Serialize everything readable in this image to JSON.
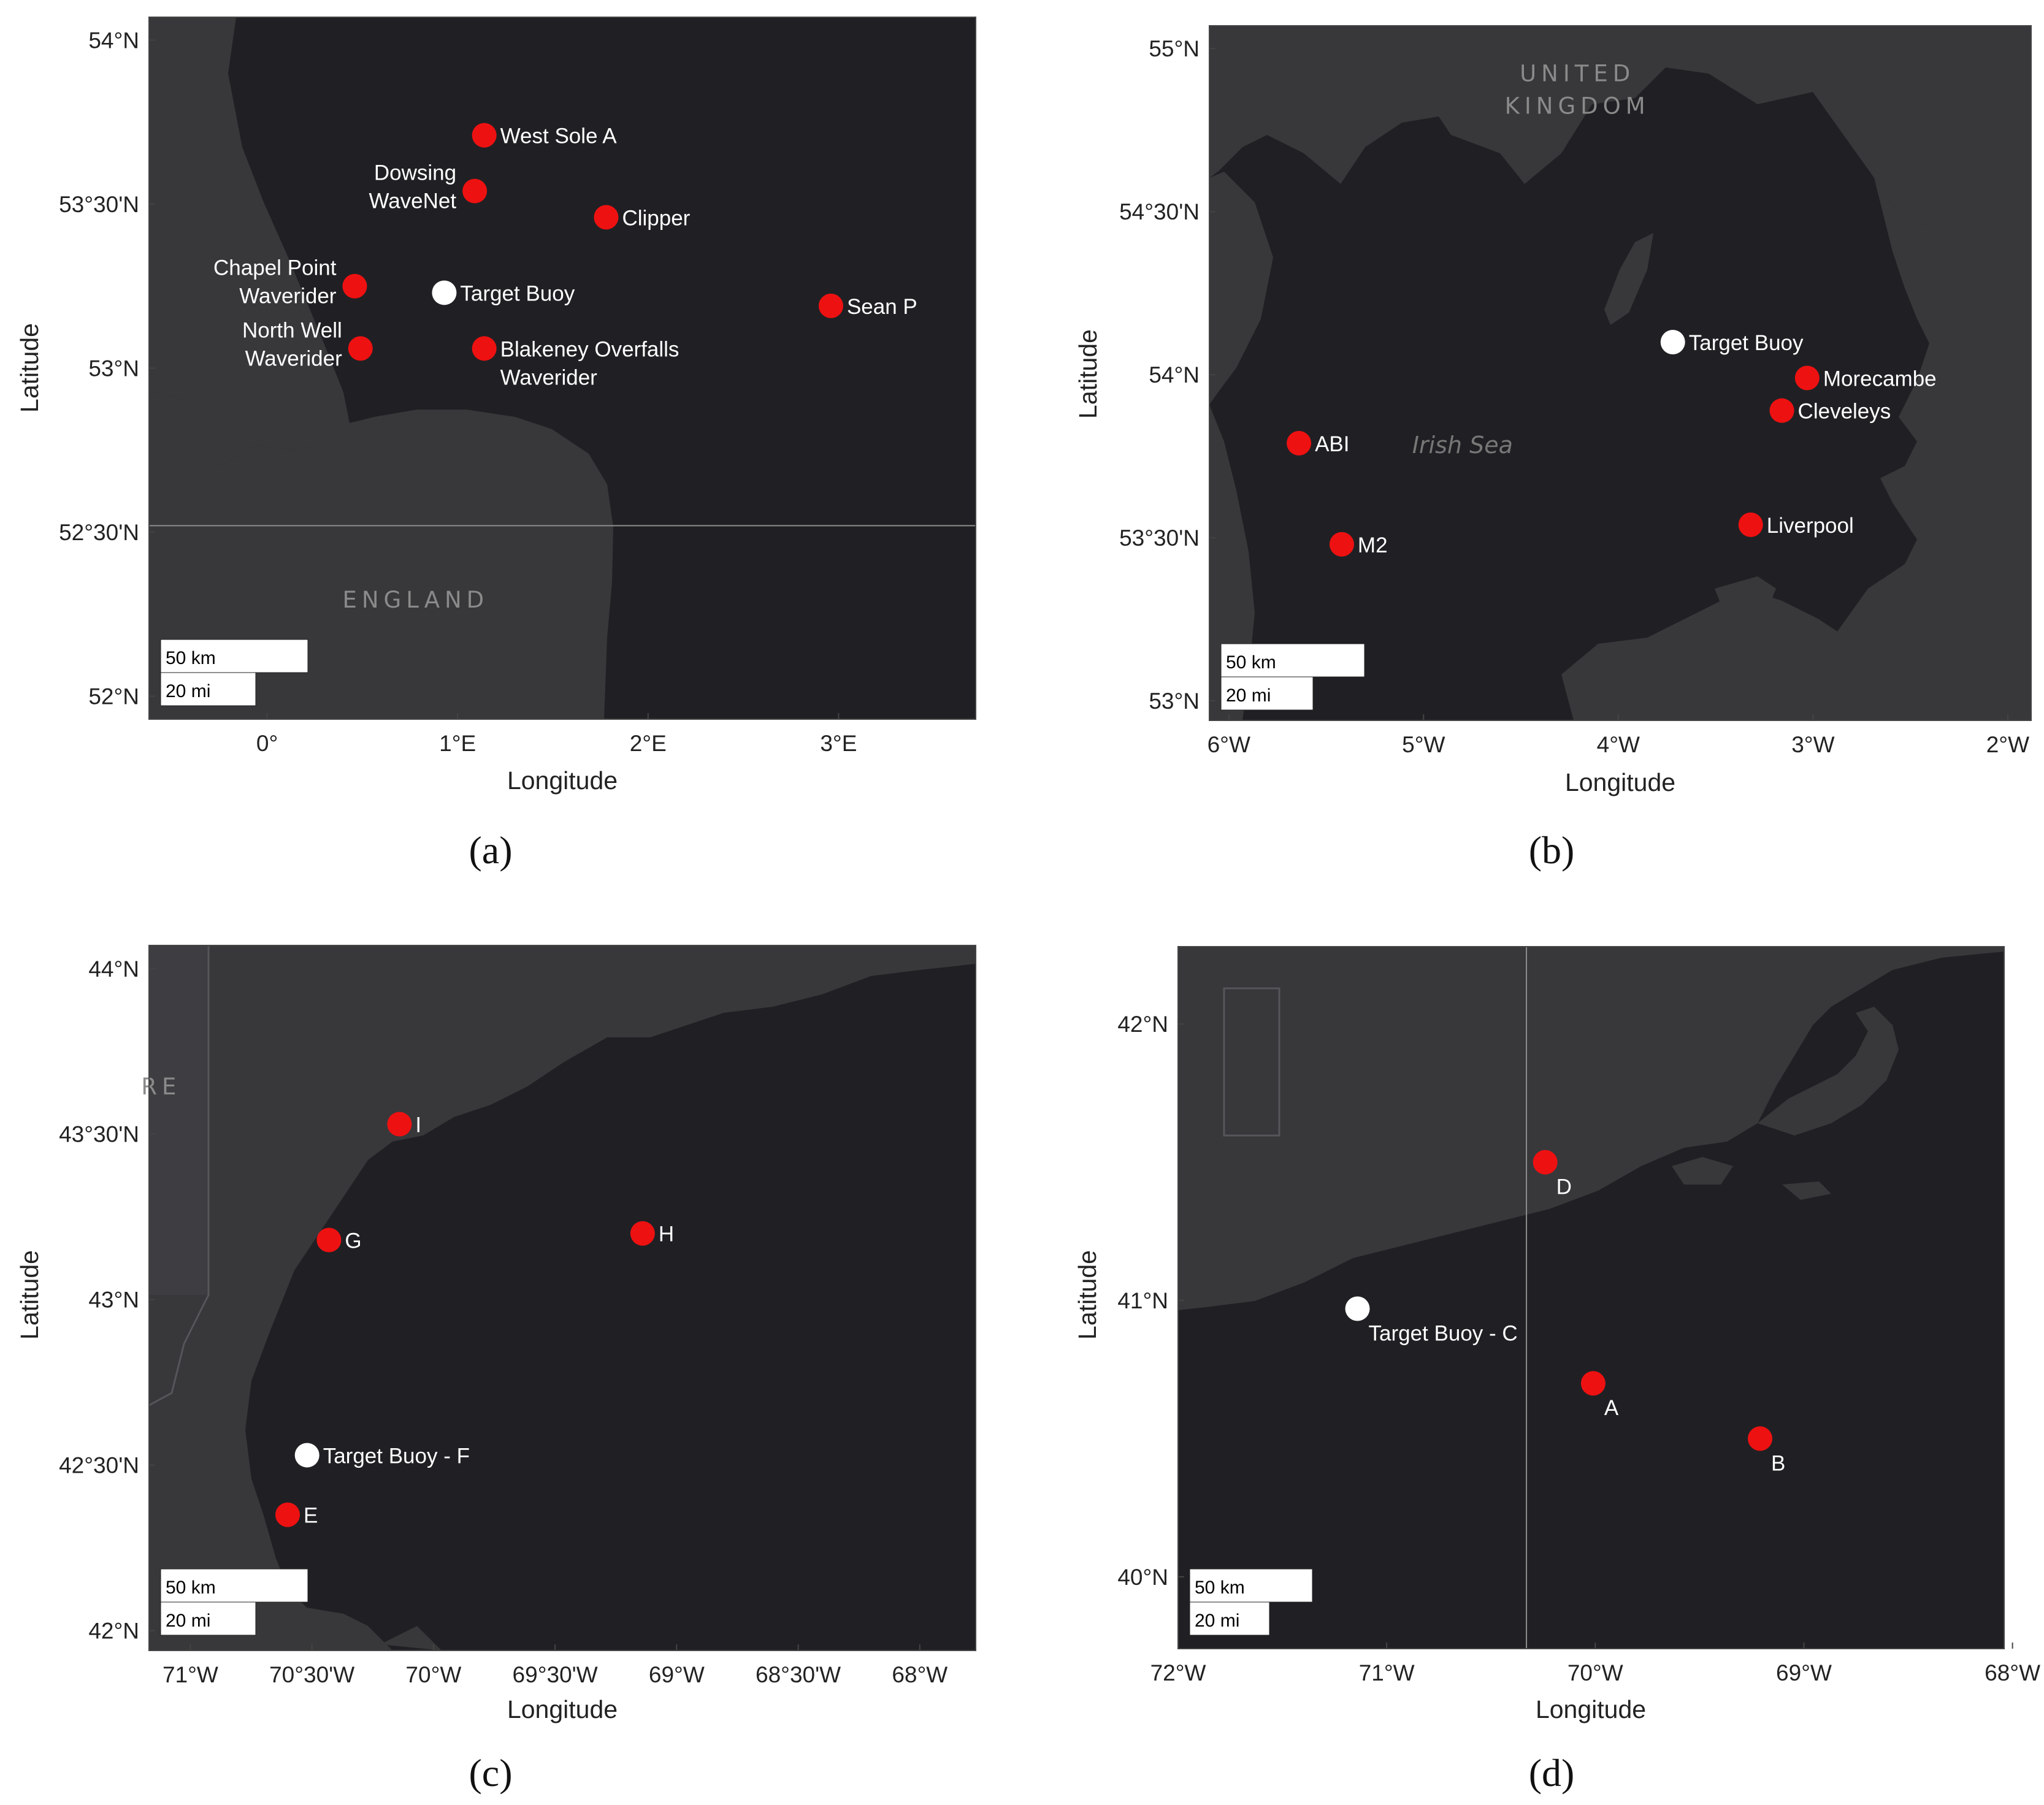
{
  "colors": {
    "water": "#202024",
    "land": "#38383b",
    "border": "#55555a",
    "station": "#ee1111",
    "target": "#ffffff",
    "frame": "#444444"
  },
  "panels": [
    {
      "id": "a",
      "caption": "(a)",
      "xlabel": "Longitude",
      "ylabel": "Latitude",
      "xlim": [
        -0.62,
        3.72
      ],
      "ylim": [
        51.93,
        54.07
      ],
      "xticks": [
        {
          "v": 0,
          "t": "0°"
        },
        {
          "v": 1,
          "t": "1°E"
        },
        {
          "v": 2,
          "t": "2°E"
        },
        {
          "v": 3,
          "t": "3°E"
        }
      ],
      "yticks": [
        {
          "v": 54,
          "t": "54°N"
        },
        {
          "v": 53.5,
          "t": "53°30'N"
        },
        {
          "v": 53,
          "t": "53°N"
        },
        {
          "v": 52.5,
          "t": "52°30'N"
        },
        {
          "v": 52,
          "t": "52°N"
        }
      ],
      "scalebar": {
        "km": "50 km",
        "mi": "20 mi"
      },
      "place_labels": [
        {
          "text": "ENGLAND",
          "x": 0.78,
          "y": 52.27
        }
      ],
      "gridlines": [
        {
          "type": "lat",
          "v": 52.52
        }
      ],
      "markers": [
        {
          "kind": "station",
          "lon": 1.14,
          "lat": 53.71,
          "label": [
            "West Sole A"
          ],
          "pos": "right"
        },
        {
          "kind": "station",
          "lon": 1.09,
          "lat": 53.54,
          "label": [
            "Dowsing",
            "WaveNet"
          ],
          "pos": "left"
        },
        {
          "kind": "station",
          "lon": 1.78,
          "lat": 53.46,
          "label": [
            "Clipper"
          ],
          "pos": "right"
        },
        {
          "kind": "station",
          "lon": 0.46,
          "lat": 53.25,
          "label": [
            "Chapel Point",
            "Waverider"
          ],
          "pos": "left"
        },
        {
          "kind": "target",
          "lon": 0.93,
          "lat": 53.23,
          "label": [
            "Target Buoy"
          ],
          "pos": "right"
        },
        {
          "kind": "station",
          "lon": 2.96,
          "lat": 53.19,
          "label": [
            "Sean P"
          ],
          "pos": "right"
        },
        {
          "kind": "station",
          "lon": 0.49,
          "lat": 53.06,
          "label": [
            "North Well",
            "Waverider"
          ],
          "pos": "left"
        },
        {
          "kind": "station",
          "lon": 1.14,
          "lat": 53.06,
          "label": [
            "Blakeney Overfalls",
            "Waverider"
          ],
          "pos": "right"
        }
      ]
    },
    {
      "id": "b",
      "caption": "(b)",
      "xlabel": "Longitude",
      "ylabel": "Latitude",
      "xlim": [
        -6.1,
        -1.88
      ],
      "ylim": [
        52.94,
        55.07
      ],
      "xticks": [
        {
          "v": -6,
          "t": "6°W"
        },
        {
          "v": -5,
          "t": "5°W"
        },
        {
          "v": -4,
          "t": "4°W"
        },
        {
          "v": -3,
          "t": "3°W"
        },
        {
          "v": -2,
          "t": "2°W"
        }
      ],
      "yticks": [
        {
          "v": 55,
          "t": "55°N"
        },
        {
          "v": 54.5,
          "t": "54°30'N"
        },
        {
          "v": 54,
          "t": "54°N"
        },
        {
          "v": 53.5,
          "t": "53°30'N"
        },
        {
          "v": 53,
          "t": "53°N"
        }
      ],
      "scalebar": {
        "km": "50 km",
        "mi": "20 mi"
      },
      "place_labels": [
        {
          "text": "UNITED",
          "x": -4.21,
          "y": 54.9
        },
        {
          "text": "KINGDOM",
          "x": -4.21,
          "y": 54.8
        }
      ],
      "italic_labels": [
        {
          "text": "Irish Sea",
          "x": -4.8,
          "y": 53.76
        }
      ],
      "gridlines": [],
      "markers": [
        {
          "kind": "target",
          "lon": -3.72,
          "lat": 54.1,
          "label": [
            "Target Buoy"
          ],
          "pos": "right"
        },
        {
          "kind": "station",
          "lon": -3.03,
          "lat": 53.99,
          "label": [
            "Morecambe"
          ],
          "pos": "right"
        },
        {
          "kind": "station",
          "lon": -3.16,
          "lat": 53.89,
          "label": [
            "Cleveleys"
          ],
          "pos": "right"
        },
        {
          "kind": "station",
          "lon": -5.64,
          "lat": 53.79,
          "label": [
            "ABI"
          ],
          "pos": "right"
        },
        {
          "kind": "station",
          "lon": -3.32,
          "lat": 53.54,
          "label": [
            "Liverpool"
          ],
          "pos": "right"
        },
        {
          "kind": "station",
          "lon": -5.42,
          "lat": 53.48,
          "label": [
            "M2"
          ],
          "pos": "right"
        }
      ]
    },
    {
      "id": "c",
      "caption": "(c)",
      "xlabel": "Longitude",
      "ylabel": "Latitude",
      "xlim": [
        -71.17,
        -67.77
      ],
      "ylim": [
        41.94,
        44.07
      ],
      "xticks": [
        {
          "v": -71,
          "t": "71°W"
        },
        {
          "v": -70.5,
          "t": "70°30'W"
        },
        {
          "v": -70,
          "t": "70°W"
        },
        {
          "v": -69.5,
          "t": "69°30'W"
        },
        {
          "v": -69,
          "t": "69°W"
        },
        {
          "v": -68.5,
          "t": "68°30'W"
        },
        {
          "v": -68,
          "t": "68°W"
        }
      ],
      "yticks": [
        {
          "v": 44,
          "t": "44°N"
        },
        {
          "v": 43.5,
          "t": "43°30'N"
        },
        {
          "v": 43,
          "t": "43°N"
        },
        {
          "v": 42.5,
          "t": "42°30'N"
        },
        {
          "v": 42,
          "t": "42°N"
        }
      ],
      "scalebar": {
        "km": "50 km",
        "mi": "20 mi"
      },
      "place_labels": [
        {
          "text": "RE",
          "x": -71.12,
          "y": 43.62
        }
      ],
      "gridlines": [],
      "markers": [
        {
          "kind": "station",
          "lon": -70.14,
          "lat": 43.53,
          "label": [
            "I"
          ],
          "pos": "right"
        },
        {
          "kind": "station",
          "lon": -70.43,
          "lat": 43.18,
          "label": [
            "G"
          ],
          "pos": "right"
        },
        {
          "kind": "station",
          "lon": -69.14,
          "lat": 43.2,
          "label": [
            "H"
          ],
          "pos": "right"
        },
        {
          "kind": "target",
          "lon": -70.52,
          "lat": 42.53,
          "label": [
            "Target Buoy - F"
          ],
          "pos": "right"
        },
        {
          "kind": "station",
          "lon": -70.6,
          "lat": 42.35,
          "label": [
            "E"
          ],
          "pos": "right"
        }
      ]
    },
    {
      "id": "d",
      "caption": "(d)",
      "xlabel": "Longitude",
      "ylabel": "Latitude",
      "xlim": [
        -72.0,
        -68.04
      ],
      "ylim": [
        39.74,
        42.28
      ],
      "xticks": [
        {
          "v": -72,
          "t": "72°W"
        },
        {
          "v": -71,
          "t": "71°W"
        },
        {
          "v": -70,
          "t": "70°W"
        },
        {
          "v": -69,
          "t": "69°W"
        },
        {
          "v": -68,
          "t": "68°W"
        }
      ],
      "yticks": [
        {
          "v": 42,
          "t": "42°N"
        },
        {
          "v": 41,
          "t": "41°N"
        },
        {
          "v": 40,
          "t": "40°N"
        }
      ],
      "scalebar": {
        "km": "50 km",
        "mi": "20 mi"
      },
      "place_labels": [],
      "gridlines": [
        {
          "type": "lon",
          "v": -70.33
        }
      ],
      "markers": [
        {
          "kind": "station",
          "lon": -70.24,
          "lat": 41.5,
          "label": [
            "D"
          ],
          "pos": "below"
        },
        {
          "kind": "target",
          "lon": -71.14,
          "lat": 40.97,
          "label": [
            "Target Buoy - C"
          ],
          "pos": "below"
        },
        {
          "kind": "station",
          "lon": -70.01,
          "lat": 40.7,
          "label": [
            "A"
          ],
          "pos": "below"
        },
        {
          "kind": "station",
          "lon": -69.21,
          "lat": 40.5,
          "label": [
            "B"
          ],
          "pos": "below"
        }
      ]
    }
  ]
}
